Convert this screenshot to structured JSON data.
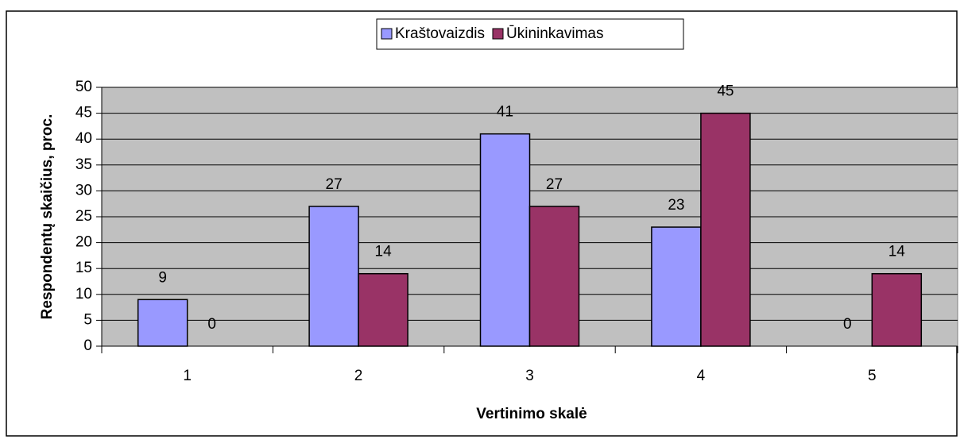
{
  "chart_data": {
    "type": "bar",
    "categories": [
      "1",
      "2",
      "3",
      "4",
      "5"
    ],
    "series": [
      {
        "name": "Kraštovaizdis",
        "color": "#9999ff",
        "values": [
          9,
          27,
          41,
          23,
          0
        ]
      },
      {
        "name": "Ūkininkavimas",
        "color": "#993366",
        "values": [
          0,
          14,
          27,
          45,
          14
        ]
      }
    ],
    "xlabel": "Vertinimo skalė",
    "ylabel": "Respondentų skaičius, proc.",
    "ylim": [
      0,
      50
    ],
    "yticks": [
      0,
      5,
      10,
      15,
      20,
      25,
      30,
      35,
      40,
      45,
      50
    ],
    "grid": true,
    "legend": "top",
    "plot_background": "#c0c0c0"
  }
}
